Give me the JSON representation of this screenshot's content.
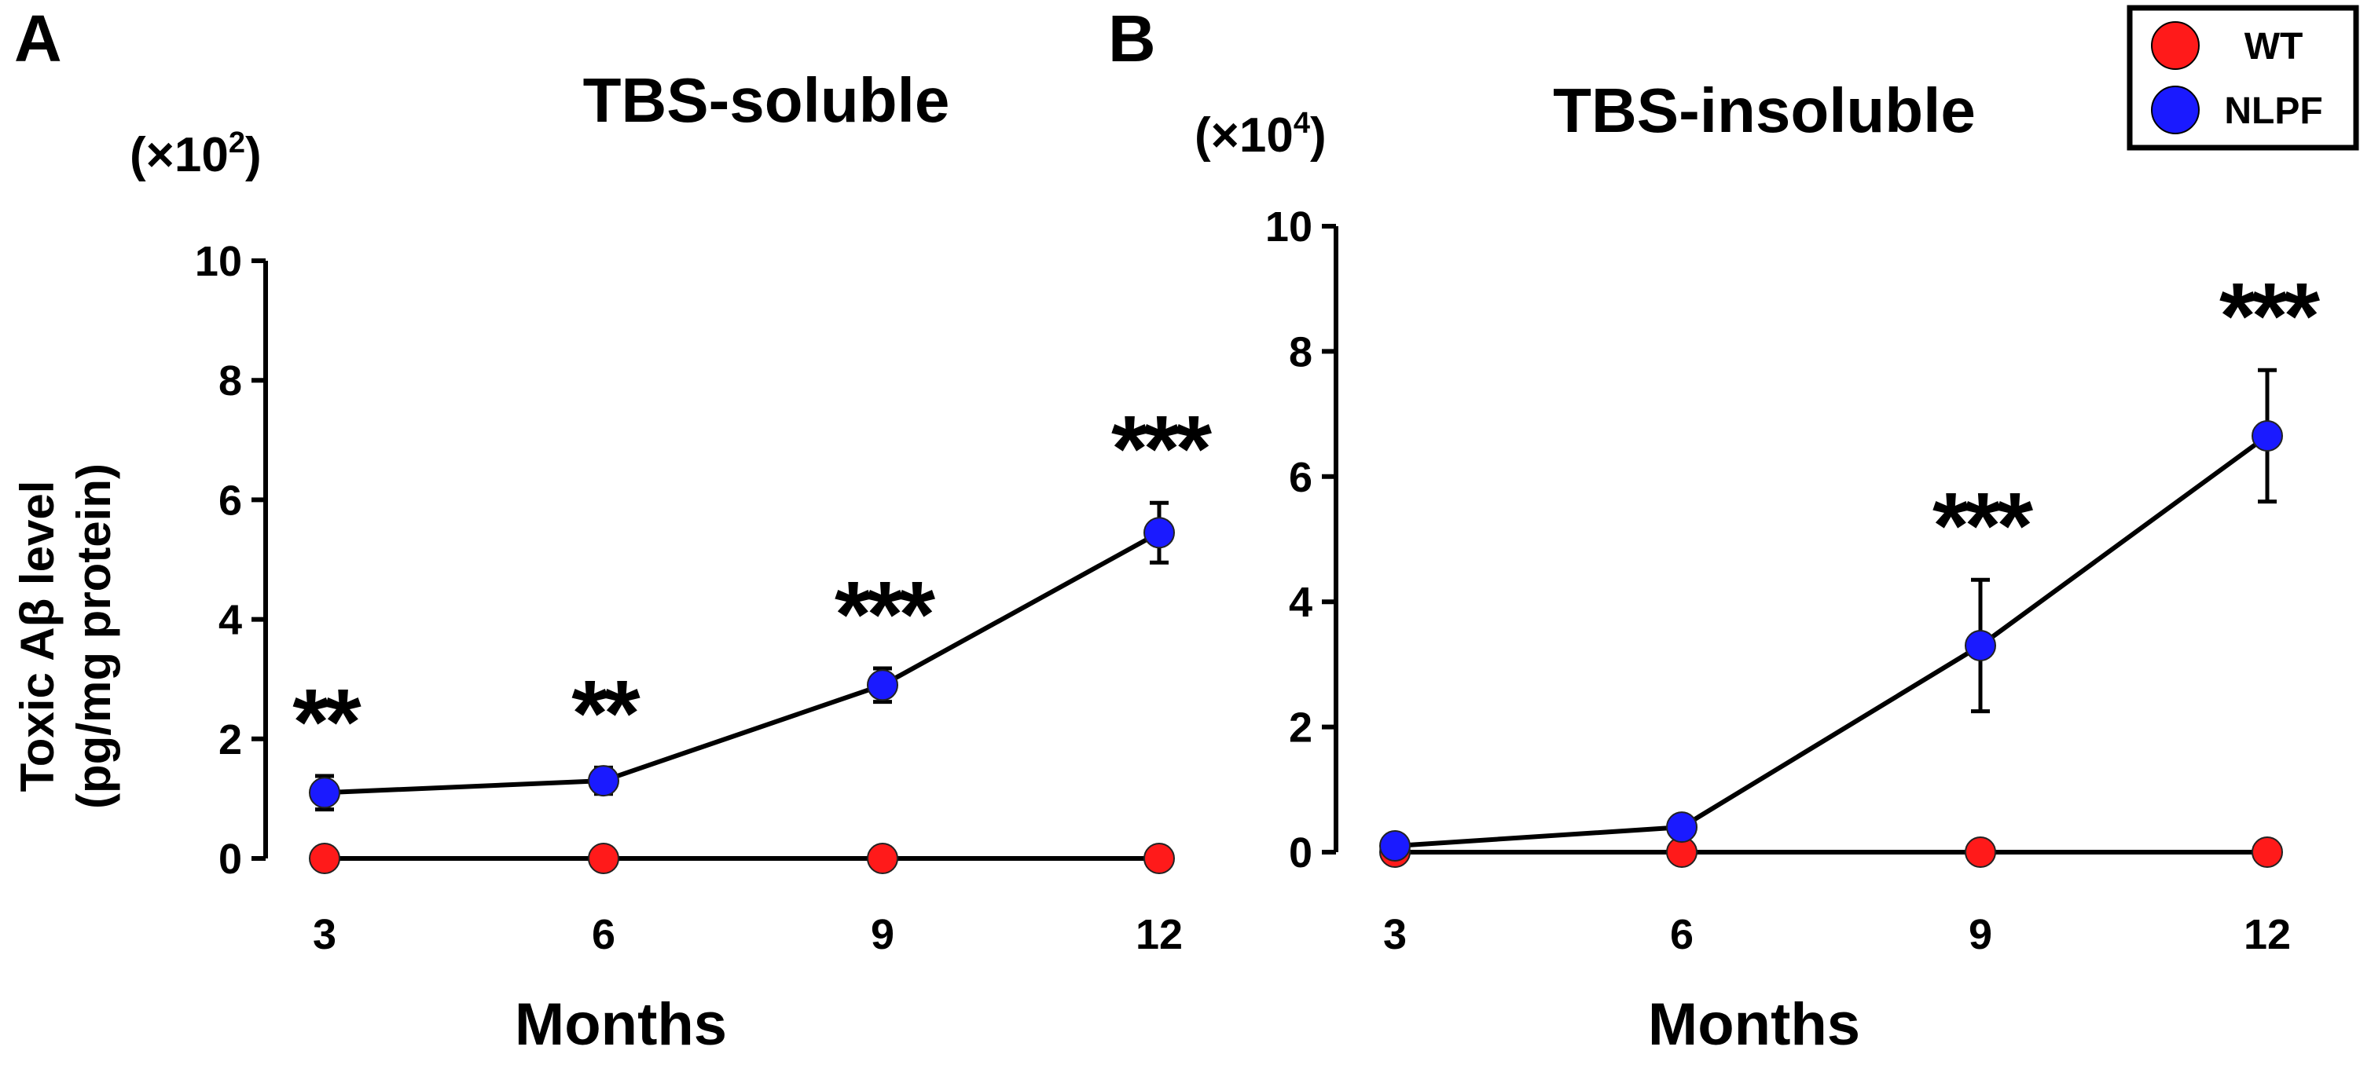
{
  "chart_data": [
    {
      "panel": "A",
      "type": "line",
      "title": "TBS-soluble",
      "scale_note": "(×10",
      "scale_exp": "2",
      "ylabel_line1": "Toxic Aβ level",
      "ylabel_line2": "(pg/mg protein)",
      "xlabel": "Months",
      "ylim": [
        0,
        10
      ],
      "yticks": [
        0,
        2,
        4,
        6,
        8,
        10
      ],
      "x": [
        3,
        6,
        9,
        12
      ],
      "series": [
        {
          "name": "WT",
          "color": "#ff1a1a",
          "values": [
            0.0,
            0.0,
            0.0,
            0.0
          ],
          "errors": [
            0,
            0,
            0,
            0
          ]
        },
        {
          "name": "NLPF",
          "color": "#1a1aff",
          "values": [
            1.1,
            1.3,
            2.9,
            5.45
          ],
          "errors": [
            0.28,
            0.22,
            0.28,
            0.5
          ]
        }
      ],
      "significance": [
        "**",
        "**",
        "***",
        "***"
      ],
      "grid": false
    },
    {
      "panel": "B",
      "type": "line",
      "title": "TBS-insoluble",
      "scale_note": "(×10",
      "scale_exp": "4",
      "ylabel_line1": "",
      "ylabel_line2": "",
      "xlabel": "Months",
      "ylim": [
        0,
        10
      ],
      "yticks": [
        0,
        2,
        4,
        6,
        8,
        10
      ],
      "x": [
        3,
        6,
        9,
        12
      ],
      "series": [
        {
          "name": "WT",
          "color": "#ff1a1a",
          "values": [
            0.0,
            0.0,
            0.0,
            0.0
          ],
          "errors": [
            0,
            0,
            0,
            0
          ]
        },
        {
          "name": "NLPF",
          "color": "#1a1aff",
          "values": [
            0.1,
            0.4,
            3.3,
            6.65
          ],
          "errors": [
            0,
            0,
            1.05,
            1.05
          ]
        }
      ],
      "significance": [
        "",
        "",
        "***",
        "***"
      ],
      "grid": false
    }
  ],
  "legend": {
    "placement": "top-right",
    "items": [
      {
        "label": "WT",
        "color": "#ff1a1a"
      },
      {
        "label": "NLPF",
        "color": "#1a1aff"
      }
    ]
  }
}
